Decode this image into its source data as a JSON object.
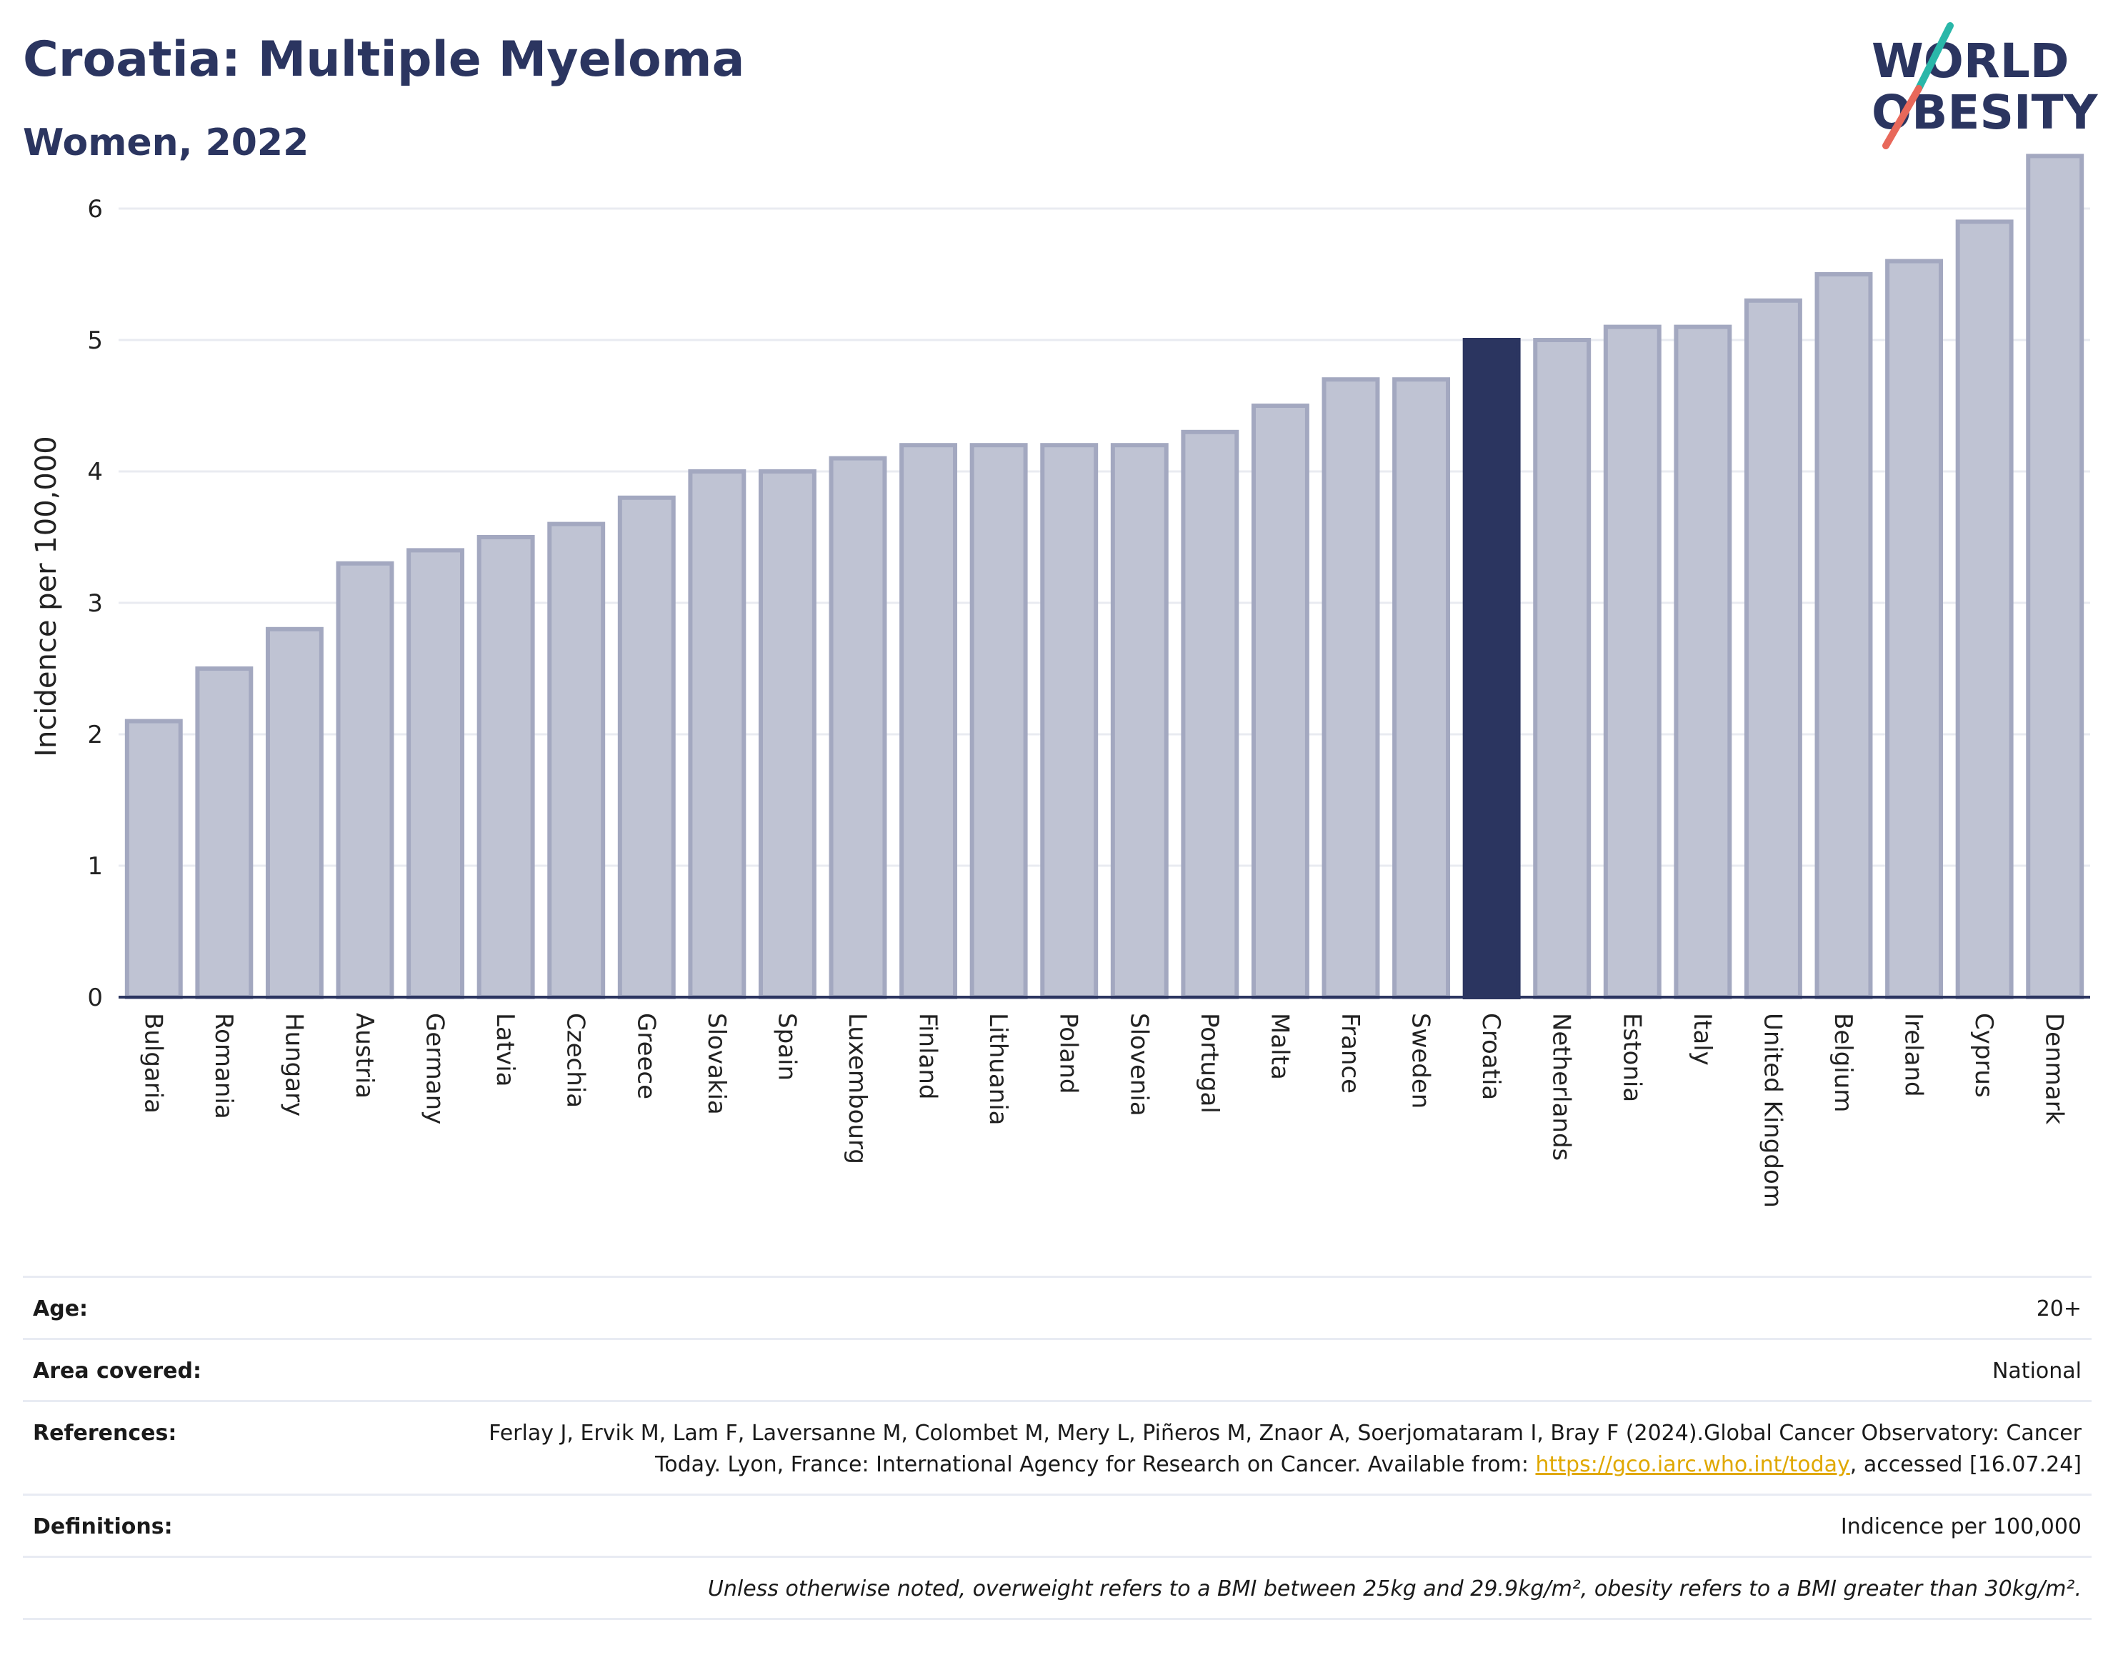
{
  "header": {
    "title": "Croatia: Multiple Myeloma",
    "subtitle": "Women, 2022"
  },
  "logo": {
    "line1": "WORLD",
    "line2": "OBESITY",
    "colors": {
      "text": "#2b3560",
      "slash_top": "#2ab7a9",
      "slash_bottom": "#e8685a"
    }
  },
  "colors": {
    "bar_default": "#bfc3d3",
    "bar_default_border": "#a3a8c0",
    "bar_highlight": "#2b3560",
    "grid": "#e9ebf1",
    "axis": "#2b3560"
  },
  "chart_data": {
    "type": "bar",
    "ylabel": "Incidence per 100,000",
    "ylim": [
      0,
      6.5
    ],
    "yticks": [
      0,
      1,
      2,
      3,
      4,
      5,
      6
    ],
    "grid": true,
    "highlight": "Croatia",
    "categories": [
      "Bulgaria",
      "Romania",
      "Hungary",
      "Austria",
      "Germany",
      "Latvia",
      "Czechia",
      "Greece",
      "Slovakia",
      "Spain",
      "Luxembourg",
      "Finland",
      "Lithuania",
      "Poland",
      "Slovenia",
      "Portugal",
      "Malta",
      "France",
      "Sweden",
      "Croatia",
      "Netherlands",
      "Estonia",
      "Italy",
      "United Kingdom",
      "Belgium",
      "Ireland",
      "Cyprus",
      "Denmark"
    ],
    "values": [
      2.1,
      2.5,
      2.8,
      3.3,
      3.4,
      3.5,
      3.6,
      3.8,
      4.0,
      4.0,
      4.1,
      4.2,
      4.2,
      4.2,
      4.2,
      4.3,
      4.5,
      4.7,
      4.7,
      5.0,
      5.0,
      5.1,
      5.1,
      5.3,
      5.5,
      5.6,
      5.9,
      6.4
    ]
  },
  "meta": {
    "age_label": "Age:",
    "age_value": "20+",
    "area_label": "Area covered:",
    "area_value": "National",
    "references_label": "References:",
    "references_text_1": "Ferlay J, Ervik M, Lam F, Laversanne M, Colombet M, Mery L, Piñeros M, Znaor A, Soerjomataram I, Bray F (2024).Global Cancer Observatory: Cancer Today. Lyon, France: International Agency for Research on Cancer. Available from: ",
    "references_link": "https://gco.iarc.who.int/today",
    "references_text_2": ", accessed [16.07.24]",
    "definitions_label": "Definitions:",
    "definitions_value": "Indicence per 100,000",
    "footnote": "Unless otherwise noted, overweight refers to a BMI between 25kg and 29.9kg/m², obesity refers to a BMI greater than 30kg/m²."
  }
}
